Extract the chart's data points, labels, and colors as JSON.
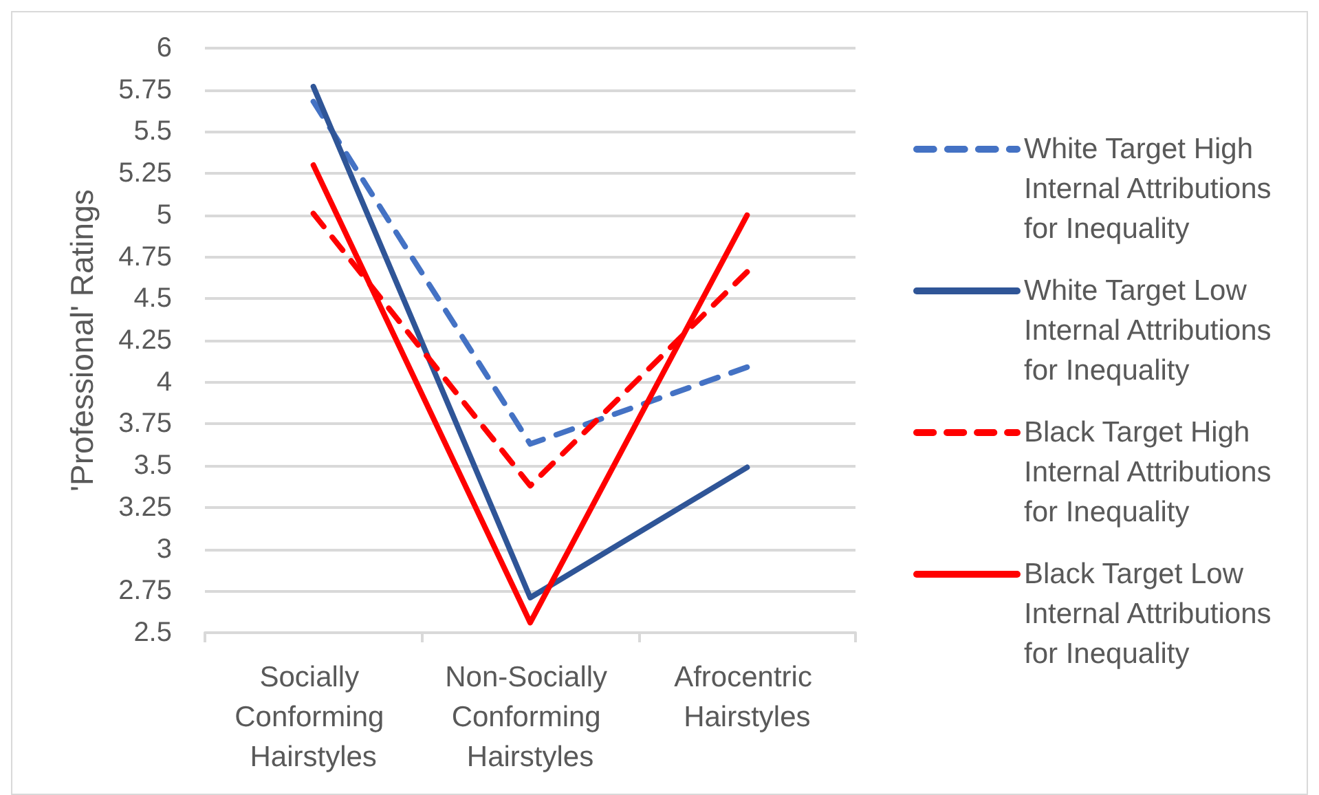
{
  "chart_data": {
    "type": "line",
    "ylabel": "'Professional' Ratings",
    "categories": [
      "Socially Conforming Hairstyles",
      "Non-Socially Conforming Hairstyles",
      "Afrocentric Hairstyles"
    ],
    "series": [
      {
        "name": "White Target High Internal Attributions for Inequality",
        "color": "#4472c4",
        "line_style": "dashed",
        "values": [
          5.68,
          3.63,
          4.09
        ]
      },
      {
        "name": "White Target Low Internal Attributions for Inequality",
        "color": "#2f5597",
        "line_style": "solid",
        "values": [
          5.77,
          2.71,
          3.49
        ]
      },
      {
        "name": "Black Target High Internal Attributions for Inequality",
        "color": "#ff0000",
        "line_style": "dashed",
        "values": [
          5.01,
          3.38,
          4.66
        ]
      },
      {
        "name": "Black Target Low Internal Attributions for Inequality",
        "color": "#ff0000",
        "line_style": "solid",
        "values": [
          5.3,
          2.56,
          5.0
        ]
      }
    ],
    "ylim": [
      2.5,
      6
    ],
    "yticks": [
      2.5,
      2.75,
      3,
      3.25,
      3.5,
      3.75,
      4,
      4.25,
      4.5,
      4.75,
      5,
      5.25,
      5.5,
      5.75,
      6
    ],
    "grid": "y",
    "legend": "right",
    "marker": "none"
  }
}
